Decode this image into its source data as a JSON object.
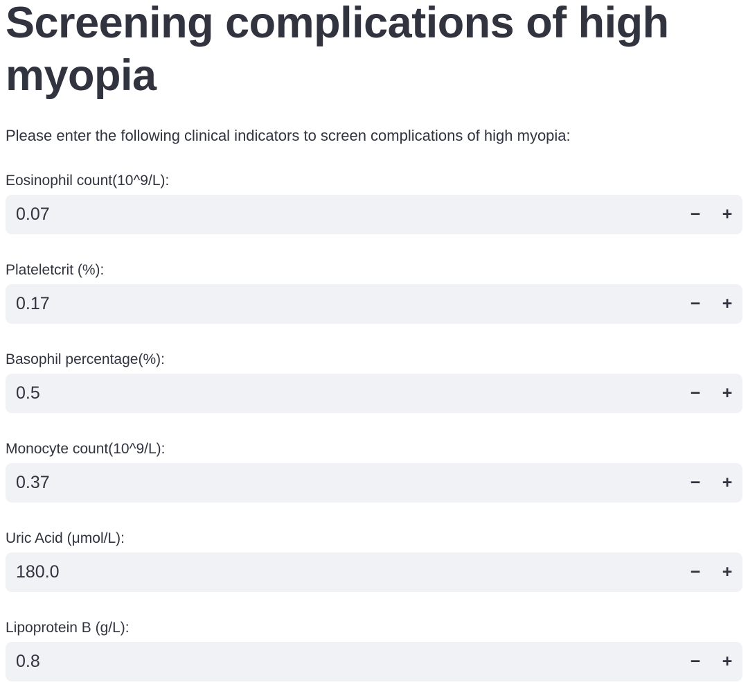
{
  "page": {
    "title": "Screening complications of high myopia",
    "intro": "Please enter the following clinical indicators to screen complications of high myopia:"
  },
  "colors": {
    "text": "#31333F",
    "field_background": "#F0F2F6",
    "page_background": "#FFFFFF"
  },
  "stepper": {
    "minus": "−",
    "plus": "+"
  },
  "fields": [
    {
      "label": "Eosinophil count(10^9/L):",
      "value": "0.07"
    },
    {
      "label": "Plateletcrit (%):",
      "value": "0.17"
    },
    {
      "label": "Basophil percentage(%):",
      "value": "0.5"
    },
    {
      "label": "Monocyte count(10^9/L):",
      "value": "0.37"
    },
    {
      "label": "Uric Acid (μmol/L):",
      "value": "180.0"
    },
    {
      "label": "Lipoprotein B (g/L):",
      "value": "0.8"
    }
  ]
}
